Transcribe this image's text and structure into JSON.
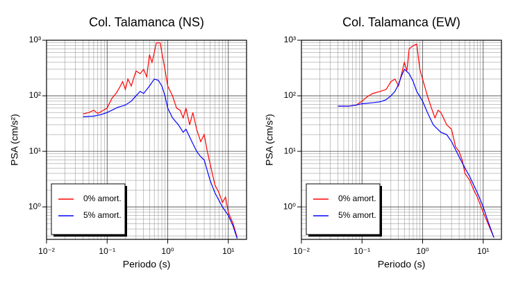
{
  "chart_data": [
    {
      "type": "line",
      "title": "Col. Talamanca (NS)",
      "x_label": "Periodo (s)",
      "y_label": "PSA (cm/s²)",
      "x_scale": "log",
      "y_scale": "log",
      "grid": true,
      "legend": "lower left",
      "xlim": [
        0.01,
        20
      ],
      "ylim": [
        0.26,
        1000
      ],
      "xticks": [
        {
          "value": 0.01,
          "label": "10⁻²"
        },
        {
          "value": 0.1,
          "label": "10⁻¹"
        },
        {
          "value": 1,
          "label": "10⁰"
        },
        {
          "value": 10,
          "label": "10¹"
        }
      ],
      "yticks": [
        {
          "value": 1,
          "label": "10⁰"
        },
        {
          "value": 10,
          "label": "10¹"
        },
        {
          "value": 100,
          "label": "10²"
        },
        {
          "value": 1000,
          "label": "10³"
        }
      ],
      "series": [
        {
          "name": "0% amort.",
          "color": "#ff0000",
          "x": [
            0.04,
            0.05,
            0.06,
            0.07,
            0.08,
            0.1,
            0.12,
            0.14,
            0.16,
            0.18,
            0.2,
            0.22,
            0.25,
            0.3,
            0.35,
            0.4,
            0.45,
            0.5,
            0.55,
            0.6,
            0.65,
            0.75,
            0.8,
            0.9,
            1.0,
            1.2,
            1.4,
            1.6,
            1.8,
            2.0,
            2.3,
            2.6,
            3.0,
            3.5,
            4.0,
            4.5,
            5.0,
            6.0,
            7.0,
            8.0,
            9.0,
            10,
            12,
            14
          ],
          "values": [
            47,
            50,
            55,
            48,
            52,
            60,
            90,
            110,
            140,
            180,
            130,
            200,
            150,
            280,
            250,
            300,
            220,
            550,
            400,
            600,
            900,
            900,
            600,
            300,
            150,
            100,
            60,
            55,
            40,
            60,
            30,
            50,
            25,
            15,
            20,
            10,
            6,
            2.5,
            1.8,
            1.2,
            1.5,
            0.8,
            0.5,
            0.28
          ]
        },
        {
          "name": "5% amort.",
          "color": "#0000ff",
          "x": [
            0.04,
            0.06,
            0.08,
            0.1,
            0.12,
            0.15,
            0.2,
            0.25,
            0.3,
            0.35,
            0.4,
            0.5,
            0.6,
            0.7,
            0.8,
            0.9,
            1.0,
            1.2,
            1.5,
            1.8,
            2.0,
            2.5,
            3.0,
            3.5,
            4.0,
            5.0,
            6.0,
            8.0,
            10,
            12,
            14
          ],
          "values": [
            42,
            43,
            46,
            50,
            55,
            62,
            68,
            80,
            100,
            120,
            110,
            150,
            200,
            190,
            150,
            100,
            60,
            40,
            30,
            22,
            25,
            15,
            10,
            8,
            7,
            3,
            1.8,
            1.0,
            0.7,
            0.45,
            0.27
          ]
        }
      ]
    },
    {
      "type": "line",
      "title": "Col. Talamanca (EW)",
      "x_label": "Periodo (s)",
      "y_label": "PSA (cm/s²)",
      "x_scale": "log",
      "y_scale": "log",
      "grid": true,
      "legend": "lower left",
      "xlim": [
        0.01,
        20
      ],
      "ylim": [
        0.26,
        1000
      ],
      "xticks": [
        {
          "value": 0.01,
          "label": "10⁻²"
        },
        {
          "value": 0.1,
          "label": "10⁻¹"
        },
        {
          "value": 1,
          "label": "10⁰"
        },
        {
          "value": 10,
          "label": "10¹"
        }
      ],
      "yticks": [
        {
          "value": 1,
          "label": "10⁰"
        },
        {
          "value": 10,
          "label": "10¹"
        },
        {
          "value": 100,
          "label": "10²"
        },
        {
          "value": 1000,
          "label": "10³"
        }
      ],
      "series": [
        {
          "name": "0% amort.",
          "color": "#ff0000",
          "x": [
            0.04,
            0.06,
            0.08,
            0.1,
            0.12,
            0.15,
            0.2,
            0.25,
            0.3,
            0.35,
            0.4,
            0.45,
            0.5,
            0.55,
            0.6,
            0.7,
            0.8,
            0.9,
            1.0,
            1.2,
            1.4,
            1.6,
            1.8,
            2.0,
            2.5,
            3.0,
            3.5,
            4.0,
            4.5,
            5.0,
            6.0,
            7.0,
            8.0,
            10,
            12,
            15
          ],
          "values": [
            65,
            65,
            68,
            80,
            95,
            110,
            120,
            130,
            180,
            200,
            150,
            250,
            400,
            280,
            700,
            800,
            850,
            300,
            200,
            100,
            60,
            40,
            55,
            50,
            30,
            25,
            12,
            10,
            7,
            4,
            3,
            2,
            1.5,
            0.8,
            0.5,
            0.28
          ]
        },
        {
          "name": "5% amort.",
          "color": "#0000ff",
          "x": [
            0.04,
            0.06,
            0.08,
            0.1,
            0.15,
            0.2,
            0.25,
            0.3,
            0.35,
            0.4,
            0.45,
            0.5,
            0.6,
            0.7,
            0.8,
            1.0,
            1.2,
            1.5,
            2.0,
            2.5,
            3.0,
            4.0,
            5.0,
            6.0,
            8.0,
            10,
            12,
            15
          ],
          "values": [
            65,
            65,
            68,
            72,
            75,
            78,
            85,
            100,
            120,
            160,
            230,
            300,
            250,
            180,
            120,
            80,
            50,
            30,
            22,
            20,
            15,
            8,
            5,
            3.5,
            1.8,
            1.0,
            0.55,
            0.28
          ]
        }
      ]
    }
  ]
}
